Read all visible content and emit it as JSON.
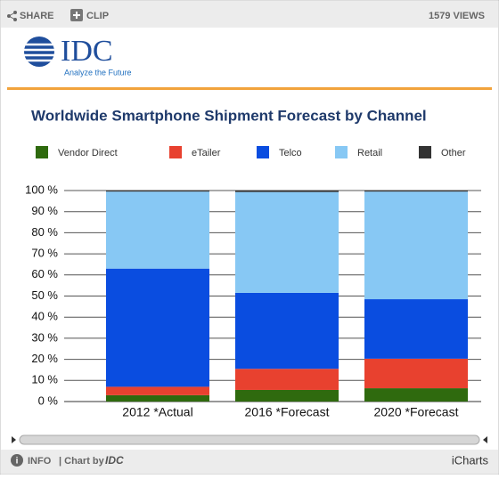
{
  "widget": {
    "share": "SHARE",
    "clip": "CLIP",
    "views": "1579 VIEWS",
    "logo": "IDC",
    "tagline": "Analyze the Future",
    "info": "INFO",
    "chart_by": "| Chart by",
    "chart_by_brand": "IDC",
    "brand": "iCharts"
  },
  "chart_data": {
    "type": "stacked_bar",
    "title": "Worldwide Smartphone Shipment Forecast by Channel",
    "categories": [
      "2012 *Actual",
      "2016 *Forecast",
      "2020 *Forecast"
    ],
    "series": [
      {
        "name": "Vendor Direct",
        "color": "#2f6a0e",
        "values": [
          3,
          5.5,
          6.3
        ]
      },
      {
        "name": "eTailer",
        "color": "#e8412f",
        "values": [
          4,
          10,
          14
        ]
      },
      {
        "name": "Telco",
        "color": "#0a4de0",
        "values": [
          56,
          36,
          28.2
        ]
      },
      {
        "name": "Retail",
        "color": "#87c8f4",
        "values": [
          36.5,
          47.8,
          51
        ]
      },
      {
        "name": "Other",
        "color": "#333333",
        "values": [
          0.5,
          0.7,
          0.5
        ]
      }
    ],
    "ylim": [
      0,
      100
    ],
    "yticks": [
      {
        "value": 0,
        "label": "0 %"
      },
      {
        "value": 10,
        "label": "10 %"
      },
      {
        "value": 20,
        "label": "20 %"
      },
      {
        "value": 30,
        "label": "30 %"
      },
      {
        "value": 40,
        "label": "40 %"
      },
      {
        "value": 50,
        "label": "50 %"
      },
      {
        "value": 60,
        "label": "60 %"
      },
      {
        "value": 70,
        "label": "70 %"
      },
      {
        "value": 80,
        "label": "80 %"
      },
      {
        "value": 90,
        "label": "90 %"
      },
      {
        "value": 100,
        "label": "100 %"
      }
    ],
    "grid": true
  }
}
